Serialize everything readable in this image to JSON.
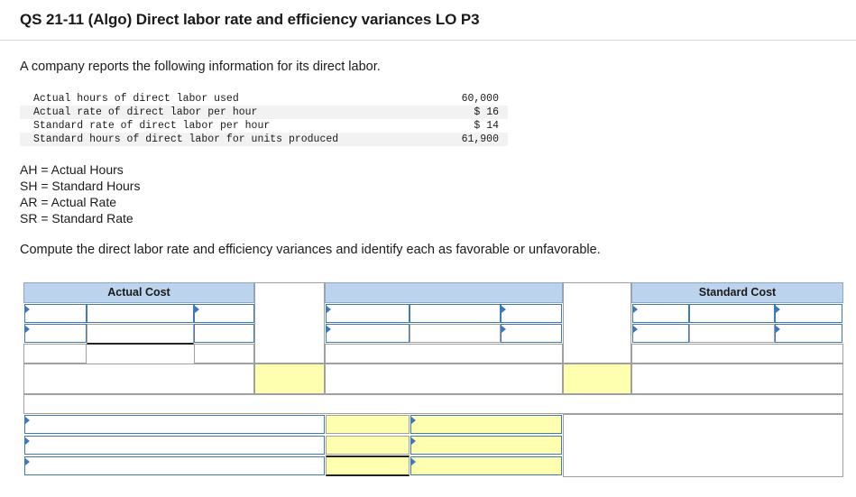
{
  "title": "QS 21-11 (Algo) Direct labor rate and efficiency variances LO P3",
  "intro": "A company reports the following information for its direct labor.",
  "data_rows": [
    {
      "label": "Actual hours of direct labor used",
      "value": "60,000"
    },
    {
      "label": "Actual rate of direct labor per hour",
      "value": "$ 16"
    },
    {
      "label": "Standard rate of direct labor per hour",
      "value": "$ 14"
    },
    {
      "label": "Standard hours of direct labor for units produced",
      "value": "61,900"
    }
  ],
  "abbreviations": [
    "AH = Actual Hours",
    "SH = Standard Hours",
    "AR = Actual Rate",
    "SR = Standard Rate"
  ],
  "prompt": "Compute the direct labor rate and efficiency variances and identify each as favorable or unfavorable.",
  "table": {
    "actual_cost_header": "Actual Cost",
    "middle_header": "",
    "standard_cost_header": "Standard Cost"
  },
  "colors": {
    "header_blue": "#bcd3ed",
    "highlight_yellow": "#ffffb0",
    "input_border": "#3f7ab8",
    "dropdown_marker": "#3b78c2"
  }
}
